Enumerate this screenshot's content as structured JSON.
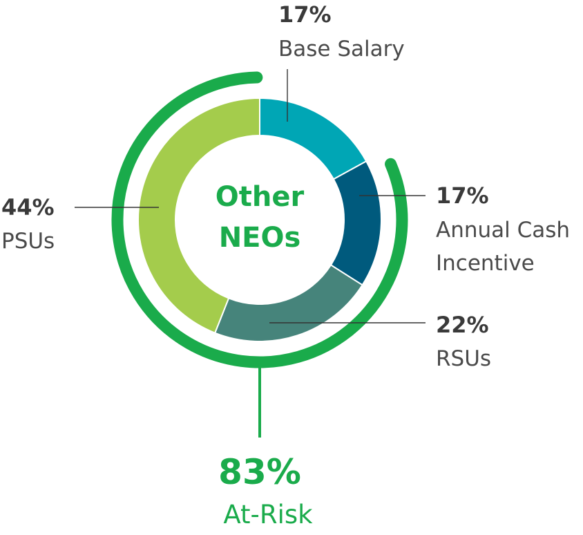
{
  "chart_data": {
    "type": "pie",
    "title": "Other NEOs",
    "title_lines": [
      "Other",
      "NEOs"
    ],
    "slices": [
      {
        "label": "Base Salary",
        "label_lines": [
          "Base Salary"
        ],
        "value": 17,
        "value_text": "17%",
        "color": "#00a6b5"
      },
      {
        "label": "Annual Cash Incentive",
        "label_lines": [
          "Annual Cash",
          "Incentive"
        ],
        "value": 17,
        "value_text": "17%",
        "color": "#005a7d"
      },
      {
        "label": "RSUs",
        "label_lines": [
          "RSUs"
        ],
        "value": 22,
        "value_text": "22%",
        "color": "#46847b"
      },
      {
        "label": "PSUs",
        "label_lines": [
          "PSUs"
        ],
        "value": 44,
        "value_text": "44%",
        "color": "#a4cc4c"
      }
    ],
    "at_risk": {
      "value": 83,
      "value_text": "83%",
      "label": "At-Risk",
      "color": "#1aab4b"
    }
  }
}
